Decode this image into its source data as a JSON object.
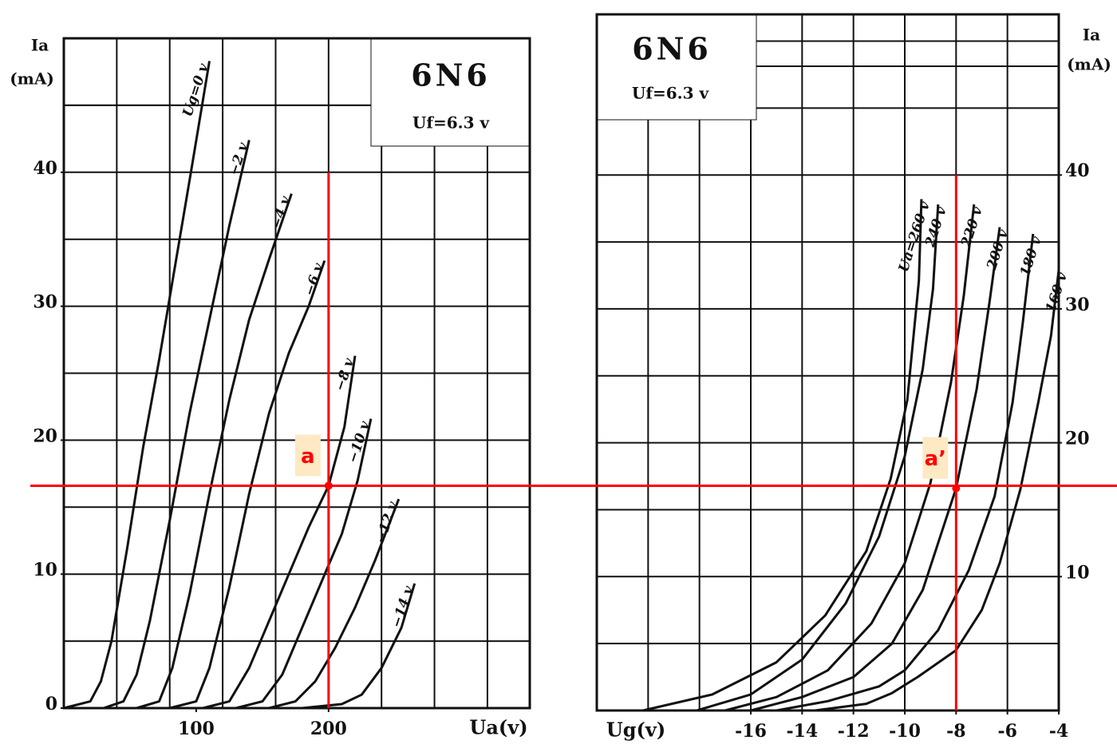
{
  "chart_data": [
    {
      "type": "line",
      "title": "6N6",
      "subtitle": "Uf=6.3 v",
      "y_label": "Ia",
      "y_unit": "(mA)",
      "x_label": "Ua(v)",
      "xlim": [
        0,
        352
      ],
      "ylim": [
        0,
        50
      ],
      "xticks": [
        100,
        200
      ],
      "yticks": [
        0,
        10,
        20,
        30,
        40
      ],
      "xgrid": [
        40,
        80,
        120,
        160,
        200,
        240,
        280,
        320
      ],
      "ygrid": [
        5,
        10,
        15,
        20,
        25,
        30,
        35,
        40,
        45
      ],
      "grid": true,
      "y_axis_side": "left",
      "color": "#111111",
      "series": [
        {
          "name": "Ug=0 v",
          "x": [
            0,
            20,
            28,
            36,
            48,
            60,
            72,
            84,
            96,
            110
          ],
          "values": [
            0,
            0.5,
            2,
            5,
            12,
            19.5,
            26,
            33,
            40,
            48.3
          ]
        },
        {
          "name": "−2 v",
          "x": [
            30,
            45,
            55,
            65,
            80,
            95,
            110,
            125,
            140
          ],
          "values": [
            0,
            0.5,
            2.5,
            6.5,
            14,
            22,
            29,
            36,
            42.4
          ]
        },
        {
          "name": "−4 v",
          "x": [
            55,
            72,
            82,
            95,
            110,
            125,
            140,
            155,
            172
          ],
          "values": [
            0,
            0.5,
            3,
            8.5,
            16,
            23,
            29,
            33.5,
            38.4
          ]
        },
        {
          "name": "−6 v",
          "x": [
            80,
            100,
            110,
            125,
            140,
            155,
            170,
            185,
            197
          ],
          "values": [
            0,
            0.5,
            3,
            9,
            16,
            22,
            26.5,
            30,
            33.4
          ]
        },
        {
          "name": "−8 v",
          "x": [
            105,
            125,
            140,
            155,
            170,
            185,
            200,
            212,
            220
          ],
          "values": [
            0,
            0.5,
            3,
            6.5,
            10,
            13.5,
            16.6,
            21,
            26.3
          ]
        },
        {
          "name": "−10 v",
          "x": [
            130,
            150,
            165,
            180,
            195,
            210,
            222,
            232
          ],
          "values": [
            0,
            0.5,
            2.5,
            6,
            9.5,
            13,
            17,
            21.6
          ]
        },
        {
          "name": "−12 v",
          "x": [
            155,
            175,
            190,
            205,
            220,
            235,
            253
          ],
          "values": [
            0,
            0.5,
            2,
            4.5,
            7.5,
            11,
            15.6
          ]
        },
        {
          "name": "−14 v",
          "x": [
            180,
            210,
            225,
            240,
            255,
            265
          ],
          "values": [
            0,
            0.3,
            1,
            3,
            6,
            9.3
          ]
        }
      ],
      "points": [
        {
          "label": "a",
          "x": 200,
          "y": 16.6
        }
      ],
      "guide_to": 40,
      "marker_color": "#ff0000"
    },
    {
      "type": "line",
      "title": "6N6",
      "subtitle": "Uf=6.3 v",
      "y_label": "Ia",
      "y_unit": "(mA)",
      "x_label": "Ug(v)",
      "xlim": [
        -22,
        -4
      ],
      "ylim": [
        0,
        52
      ],
      "xticks": [
        -16,
        -14,
        -12,
        -10,
        -8,
        -6,
        -4
      ],
      "yticks": [
        10,
        20,
        30,
        40
      ],
      "xgrid": [
        -20,
        -18,
        -16,
        -14,
        -12,
        -10,
        -8,
        -6
      ],
      "ygrid": [
        5,
        10,
        15,
        20,
        25,
        30,
        35,
        40,
        45,
        50
      ],
      "grid": true,
      "y_axis_side": "right",
      "color": "#111111",
      "series": [
        {
          "name": "Ua=260 v",
          "x": [
            -20.2,
            -17.5,
            -15,
            -13.1,
            -11.5,
            -10.55,
            -9.9,
            -9.45,
            -9.35
          ],
          "values": [
            0,
            1.2,
            3.6,
            7.1,
            11.9,
            17.3,
            23.2,
            32.1,
            38.2
          ]
        },
        {
          "name": "240 v",
          "x": [
            -18.1,
            -16,
            -14,
            -12.3,
            -11,
            -10,
            -9.3,
            -8.9,
            -8.7
          ],
          "values": [
            0,
            1.2,
            3.8,
            8,
            13,
            19,
            25.5,
            31.5,
            37.8
          ]
        },
        {
          "name": "220 v",
          "x": [
            -17,
            -15,
            -13,
            -11.3,
            -10,
            -9,
            -8.2,
            -7.7,
            -7.3
          ],
          "values": [
            0,
            1,
            3,
            6.5,
            11,
            17,
            24.5,
            31,
            37.8
          ]
        },
        {
          "name": "200 v",
          "x": [
            -16,
            -14,
            -12,
            -10.5,
            -9.3,
            -8,
            -7.2,
            -6.7,
            -6.3
          ],
          "values": [
            0,
            1,
            2.5,
            5,
            9,
            16.6,
            24,
            30.5,
            36.1
          ]
        },
        {
          "name": "180 v",
          "x": [
            -15,
            -13,
            -11,
            -10,
            -8.7,
            -7.5,
            -6.5,
            -5.8,
            -5.4,
            -5
          ],
          "values": [
            0,
            0.7,
            1.8,
            3,
            6,
            10.5,
            16,
            23,
            29,
            35.6
          ]
        },
        {
          "name": "160 v",
          "x": [
            -13.5,
            -11.5,
            -10.5,
            -9.5,
            -8,
            -7,
            -6.3,
            -5.5,
            -4.8,
            -4.3,
            -4
          ],
          "values": [
            0,
            0.5,
            1.3,
            2.5,
            4.5,
            7.5,
            11,
            16.5,
            23,
            28,
            32.9
          ]
        }
      ],
      "points": [
        {
          "label": "a’",
          "x": -8,
          "y": 16.6
        }
      ],
      "guide_to": 40,
      "marker_color": "#ff0000"
    }
  ]
}
